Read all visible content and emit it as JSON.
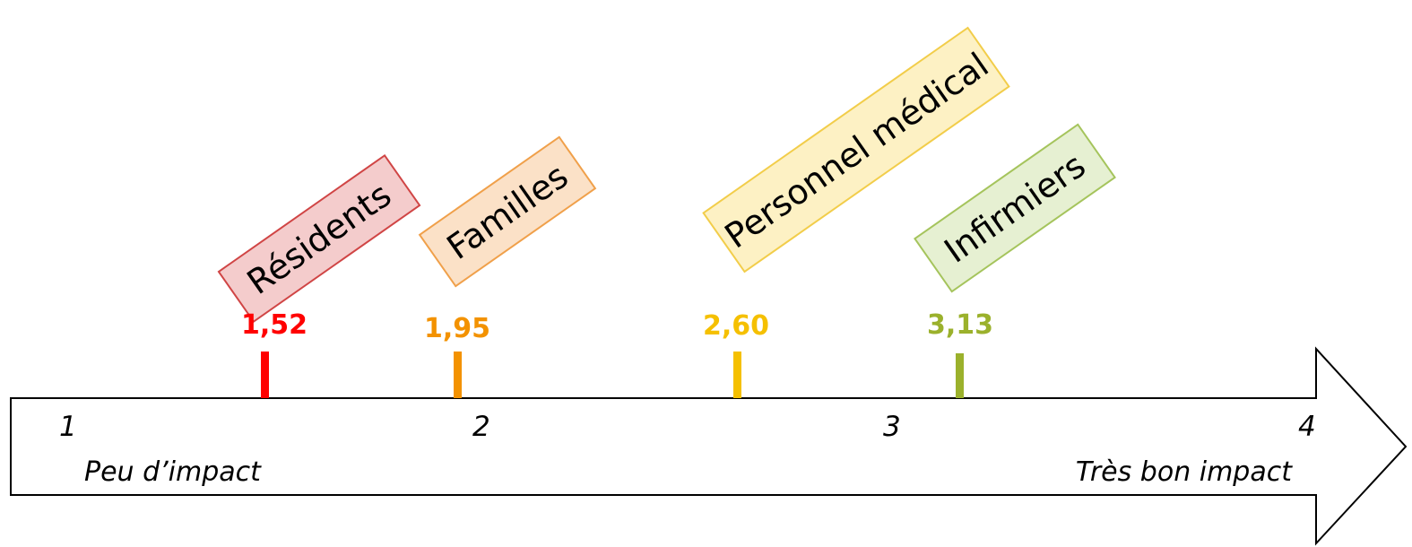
{
  "scale": {
    "min": 1,
    "max": 4,
    "ticks": [
      {
        "value": 1,
        "label": "1"
      },
      {
        "value": 2,
        "label": "2"
      },
      {
        "value": 3,
        "label": "3"
      },
      {
        "value": 4,
        "label": "4"
      }
    ],
    "low_label": "Peu d’impact",
    "high_label": "Très bon impact"
  },
  "markers": [
    {
      "group": "Résidents",
      "value": 1.52,
      "value_label": "1,52",
      "color": "#ff0000",
      "box_fill": "#f4cccc",
      "box_stroke": "#d04545"
    },
    {
      "group": "Familles",
      "value": 1.95,
      "value_label": "1,95",
      "color": "#f39200",
      "box_fill": "#fbe1c7",
      "box_stroke": "#f0a04a"
    },
    {
      "group": "Personnel médical",
      "value": 2.6,
      "value_label": "2,60",
      "color": "#f5c000",
      "box_fill": "#fdf1c4",
      "box_stroke": "#f2cd4a"
    },
    {
      "group": "Infirmiers",
      "value": 3.13,
      "value_label": "3,13",
      "color": "#9bb12c",
      "box_fill": "#e6f0d2",
      "box_stroke": "#a5c45c"
    }
  ]
}
